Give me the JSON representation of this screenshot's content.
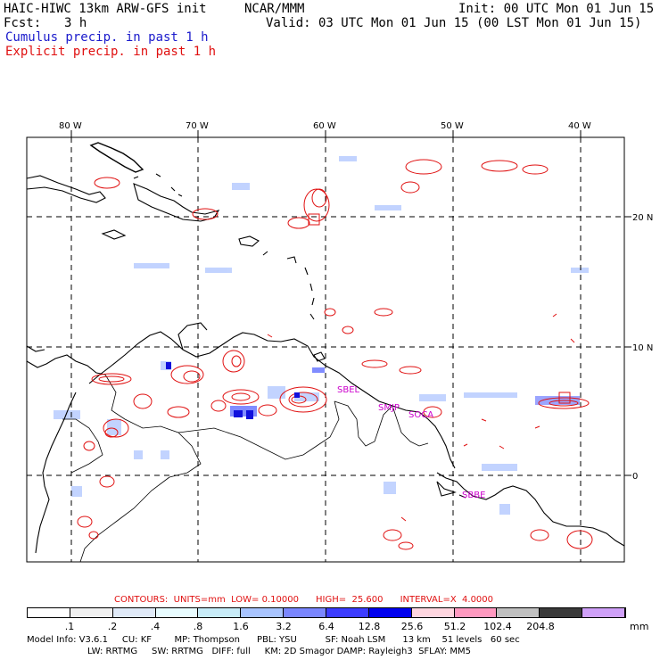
{
  "header": {
    "model_title": "HAIC-HIWC 13km ARW-GFS init",
    "org": "NCAR/MMM",
    "init": "Init: 00 UTC Mon 01 Jun 15",
    "fcst_label": "Fcst:",
    "fcst_value": "3 h",
    "valid": "Valid: 03 UTC Mon 01 Jun 15 (00 LST Mon 01 Jun 15)",
    "legend_cumulus": "Cumulus precip. in past 1 h",
    "legend_explicit": "Explicit precip. in past 1 h"
  },
  "map": {
    "lon_labels": [
      "80 W",
      "70 W",
      "60 W",
      "50 W",
      "40 W"
    ],
    "lat_labels": [
      "20 N",
      "10 N",
      "0"
    ],
    "stations": [
      "SBEL",
      "SMJP",
      "SOCA",
      "SBBE"
    ],
    "colors": {
      "coast": "#000000",
      "grid": "#000000",
      "explicit": "#e01010",
      "cumulus": "#a8c4ff",
      "station": "#cc00cc"
    }
  },
  "contours": {
    "label": "CONTOURS:  UNITS=mm  LOW= 0.10000      HIGH=  25.600      INTERVAL=X  4.0000"
  },
  "colorbar": {
    "labels": [
      ".1",
      ".2",
      ".4",
      ".8",
      "1.6",
      "3.2",
      "6.4",
      "12.8",
      "25.6",
      "51.2",
      "102.4",
      "204.8"
    ],
    "unit": "mm",
    "colors": [
      "#ffffff",
      "#f0f0f0",
      "#e0eaf8",
      "#e8fcff",
      "#c8ecf8",
      "#a8c4ff",
      "#7a86ff",
      "#3c3cff",
      "#0000ee",
      "#ffd6e0",
      "#ff99c0",
      "#c0c0c0",
      "#3a3a3a",
      "#cfa0f8"
    ]
  },
  "footer": {
    "line1": "Model Info: V3.6.1     CU: KF        MP: Thompson      PBL: YSU          SF: Noah LSM      13 km    51 levels   60 sec",
    "line2": "LW: RRTMG     SW: RRTMG   DIFF: full     KM: 2D Smagor DAMP: Rayleigh3  SFLAY: MM5"
  }
}
